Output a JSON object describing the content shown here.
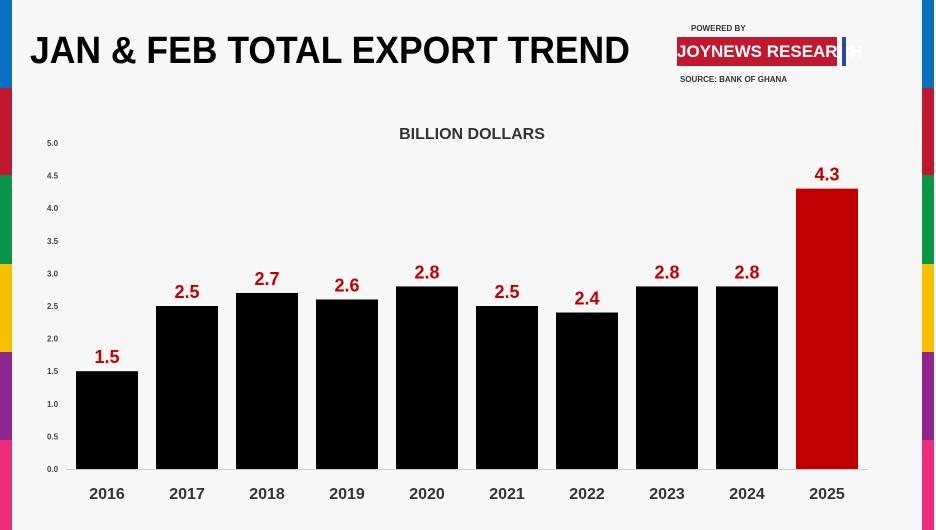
{
  "title": "JAN & FEB TOTAL EXPORT TREND",
  "branding": {
    "powered_by": "POWERED BY",
    "name": "JOYNEWS RESEARCH",
    "source": "SOURCE: BANK OF GHANA"
  },
  "colors": {
    "bar": "#000000",
    "highlight": "#c00000",
    "label": "#c00000",
    "stripes": [
      "#0a6fc2",
      "#c0182f",
      "#0a9447",
      "#f9c000",
      "#8e2590",
      "#ec2d7d"
    ]
  },
  "chart_data": {
    "type": "bar",
    "ylabel": "BILLION DOLLARS",
    "categories": [
      "2016",
      "2017",
      "2018",
      "2019",
      "2020",
      "2021",
      "2022",
      "2023",
      "2024",
      "2025"
    ],
    "values": [
      1.5,
      2.5,
      2.7,
      2.6,
      2.8,
      2.5,
      2.4,
      2.8,
      2.8,
      4.3
    ],
    "data_labels": [
      "1.5",
      "2.5",
      "2.7",
      "2.6",
      "2.8",
      "2.5",
      "2.4",
      "2.8",
      "2.8",
      "4.3"
    ],
    "highlight_category": "2025",
    "ylim": [
      0,
      5
    ],
    "yticks": [
      "0.0",
      "0.5",
      "1.0",
      "1.5",
      "2.0",
      "2.5",
      "3.0",
      "3.5",
      "4.0",
      "4.5",
      "5.0"
    ],
    "grid": false
  }
}
